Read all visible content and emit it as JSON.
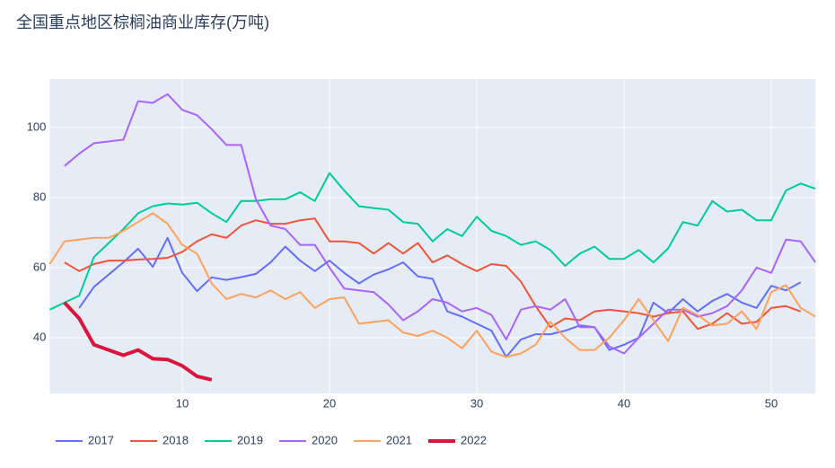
{
  "chart_data": {
    "type": "line",
    "title": "全国重点地区棕榈油商业库存(万吨)",
    "x": [
      1,
      2,
      3,
      4,
      5,
      6,
      7,
      8,
      9,
      10,
      11,
      12,
      13,
      14,
      15,
      16,
      17,
      18,
      19,
      20,
      21,
      22,
      23,
      24,
      25,
      26,
      27,
      28,
      29,
      30,
      31,
      32,
      33,
      34,
      35,
      36,
      37,
      38,
      39,
      40,
      41,
      42,
      43,
      44,
      45,
      46,
      47,
      48,
      49,
      50,
      51,
      52,
      53
    ],
    "xlim": [
      1,
      53
    ],
    "xticks": [
      10,
      20,
      30,
      40,
      50
    ],
    "ylim": [
      24.1,
      113.8
    ],
    "yticks": [
      40,
      60,
      80,
      100
    ],
    "grid": true,
    "legend": "bottom",
    "series": [
      {
        "name": "2017",
        "color": "#636efa",
        "values": [
          null,
          null,
          48.5,
          54.5,
          58,
          61.5,
          65.4,
          60.2,
          68.5,
          58.5,
          53.3,
          57.2,
          56.5,
          57.3,
          58.2,
          61.5,
          66,
          62,
          59,
          62,
          58.5,
          55.5,
          58,
          59.5,
          61.5,
          57.5,
          56.8,
          47.5,
          46,
          44,
          42,
          34.5,
          39.5,
          41,
          41,
          42,
          43.5,
          43,
          36.5,
          38,
          40,
          50,
          47,
          51,
          47.5,
          50.5,
          52.5,
          50,
          48.5,
          54.8,
          53.5,
          55.8,
          null
        ]
      },
      {
        "name": "2018",
        "color": "#ef553b",
        "values": [
          null,
          61.5,
          59,
          61,
          62,
          62,
          62.3,
          62.5,
          62.8,
          64.5,
          67.5,
          69.5,
          68.5,
          72,
          73.5,
          72.5,
          72.5,
          73.5,
          74,
          67.5,
          67.5,
          67,
          64,
          67,
          64,
          67,
          61.5,
          63.5,
          61,
          59,
          61,
          60.5,
          56,
          49,
          43,
          45.5,
          45,
          47.5,
          48,
          47.5,
          47,
          46,
          47,
          47.5,
          42.5,
          44,
          47,
          44,
          44.5,
          48.5,
          49,
          47.5,
          null
        ]
      },
      {
        "name": "2019",
        "color": "#00cc96",
        "values": [
          48,
          50,
          52,
          63,
          67,
          71,
          75.5,
          77.5,
          78.3,
          78,
          78.5,
          75.5,
          73,
          79,
          79,
          79.5,
          79.5,
          81.5,
          79,
          87,
          82,
          77.5,
          77,
          76.5,
          73,
          72.5,
          67.5,
          71,
          69,
          74.5,
          70.5,
          69,
          66.5,
          67.5,
          65,
          60.5,
          64,
          66,
          62.5,
          62.5,
          65,
          61.5,
          65.5,
          73,
          72,
          79,
          76,
          76.5,
          73.5,
          73.5,
          82,
          84,
          82.5
        ]
      },
      {
        "name": "2020",
        "color": "#ab63fa",
        "values": [
          null,
          89,
          92.5,
          95.5,
          96,
          96.5,
          107.5,
          107,
          109.5,
          105,
          103.5,
          99.5,
          95,
          95,
          79.5,
          72,
          71,
          66.5,
          66.5,
          60,
          54,
          53.5,
          53,
          49.5,
          45,
          47.5,
          51,
          50,
          47.5,
          48.5,
          46.5,
          39.5,
          48,
          49,
          48,
          51,
          43,
          43,
          37.5,
          35.5,
          40,
          44,
          48,
          48,
          46,
          47,
          49,
          53.5,
          60,
          58.5,
          68,
          67.5,
          61.5
        ]
      },
      {
        "name": "2021",
        "color": "#ffa15a",
        "values": [
          61,
          67.5,
          68,
          68.5,
          68.5,
          70.5,
          73,
          75.5,
          72.5,
          66.5,
          64,
          55.5,
          51,
          52.5,
          51.5,
          53.5,
          51,
          53,
          48.5,
          51,
          51.5,
          44,
          44.5,
          45,
          41.5,
          40.5,
          42,
          40,
          37,
          42,
          36,
          34.5,
          35.5,
          38,
          44.5,
          40,
          36.5,
          36.5,
          40,
          45,
          51,
          45,
          39,
          48.5,
          46.5,
          43.5,
          44,
          47.5,
          42.5,
          53,
          55,
          48.5,
          46
        ]
      },
      {
        "name": "2022",
        "color": "#dc143c",
        "values": [
          null,
          50,
          45.5,
          38,
          36.5,
          35,
          36.5,
          34,
          33.8,
          32,
          29,
          28,
          null,
          null,
          null,
          null,
          null,
          null,
          null,
          null,
          null,
          null,
          null,
          null,
          null,
          null,
          null,
          null,
          null,
          null,
          null,
          null,
          null,
          null,
          null,
          null,
          null,
          null,
          null,
          null,
          null,
          null,
          null,
          null,
          null,
          null,
          null,
          null,
          null,
          null,
          null,
          null,
          null
        ]
      }
    ]
  }
}
